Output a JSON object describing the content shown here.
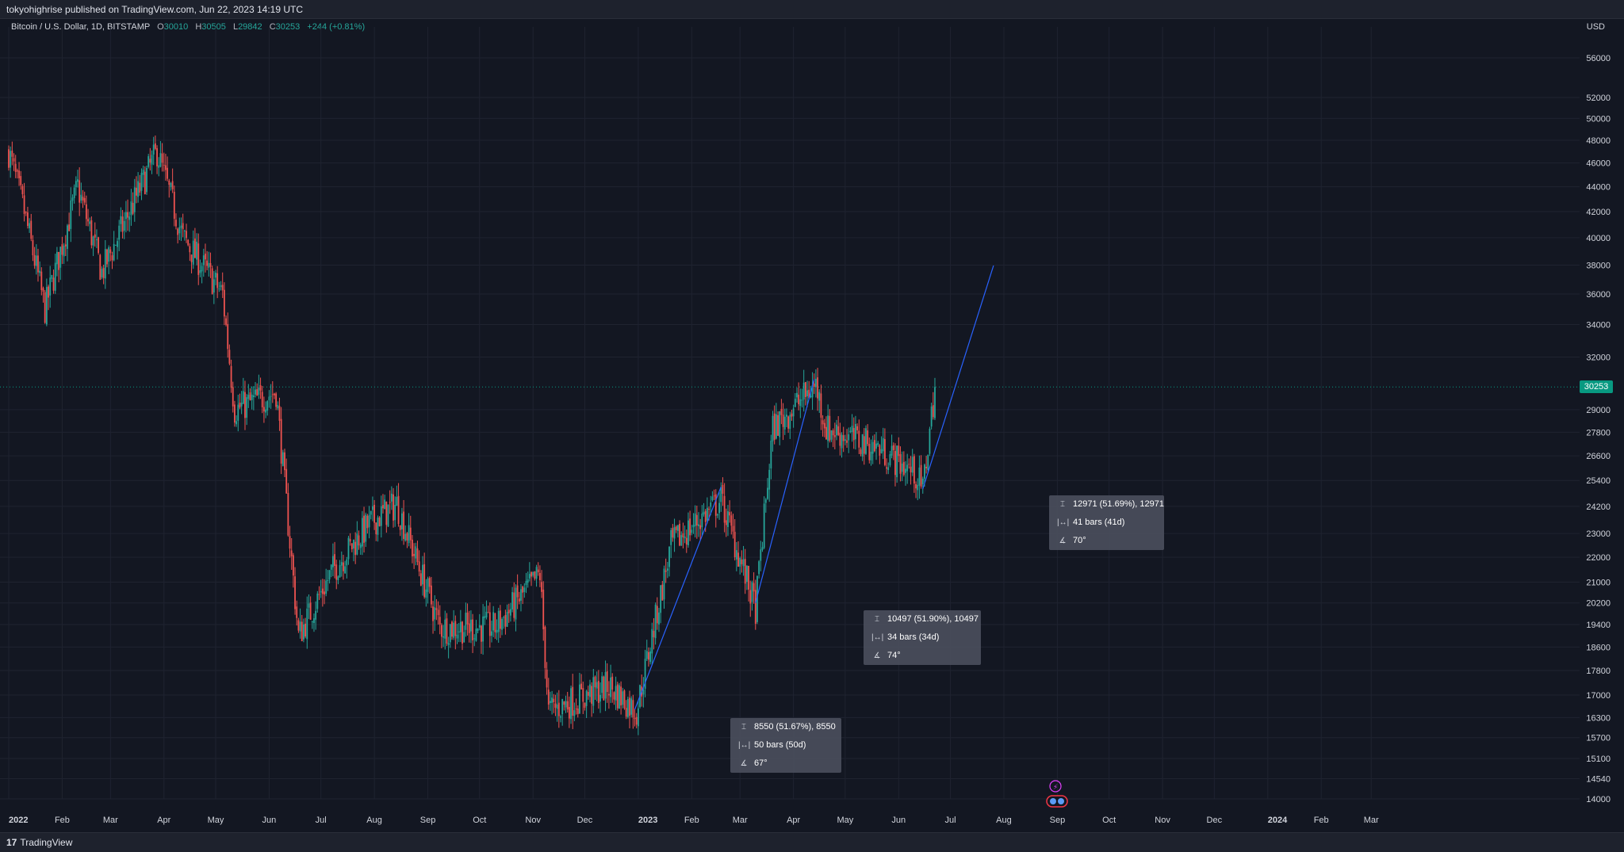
{
  "header": {
    "published": "tokyohighrise published on TradingView.com, Jun 22, 2023 14:19 UTC"
  },
  "legend": {
    "symbol": "Bitcoin / U.S. Dollar, 1D, BITSTAMP",
    "o_label": "O",
    "o": "30010",
    "h_label": "H",
    "h": "30505",
    "l_label": "L",
    "l": "29842",
    "c_label": "C",
    "c": "30253",
    "change": "+244 (+0.81%)"
  },
  "currency": "USD",
  "footer": {
    "brand": "TradingView",
    "logo_glyph": "17"
  },
  "last_price_label": "30253",
  "colors": {
    "up": "#26a69a",
    "down": "#ef5350",
    "line": "#2962ff",
    "bg": "#131722"
  },
  "measurements": [
    {
      "price": "8550 (51.67%), 8550",
      "bars": "50 bars (50d)",
      "angle": "67°"
    },
    {
      "price": "10497 (51.90%), 10497",
      "bars": "34 bars (34d)",
      "angle": "74°"
    },
    {
      "price": "12971 (51.69%), 12971",
      "bars": "41 bars (41d)",
      "angle": "70°"
    }
  ],
  "chart_data": {
    "type": "candlestick",
    "scale": "log",
    "last_price": 30253,
    "y_ticks": [
      14000,
      14540,
      15100,
      15700,
      16300,
      17000,
      17800,
      18600,
      19400,
      20200,
      21000,
      22000,
      23000,
      24200,
      25400,
      26600,
      27800,
      29000,
      32000,
      34000,
      36000,
      38000,
      40000,
      42000,
      44000,
      46000,
      48000,
      50000,
      52000,
      56000
    ],
    "x_ticks": [
      {
        "label": "2022",
        "date": "2022-01-01",
        "bold": true
      },
      {
        "label": "Feb",
        "date": "2022-02-01"
      },
      {
        "label": "Mar",
        "date": "2022-03-01"
      },
      {
        "label": "Apr",
        "date": "2022-04-01"
      },
      {
        "label": "May",
        "date": "2022-05-01"
      },
      {
        "label": "Jun",
        "date": "2022-06-01"
      },
      {
        "label": "Jul",
        "date": "2022-07-01"
      },
      {
        "label": "Aug",
        "date": "2022-08-01"
      },
      {
        "label": "Sep",
        "date": "2022-09-01"
      },
      {
        "label": "Oct",
        "date": "2022-10-01"
      },
      {
        "label": "Nov",
        "date": "2022-11-01"
      },
      {
        "label": "Dec",
        "date": "2022-12-01"
      },
      {
        "label": "2023",
        "date": "2023-01-01",
        "bold": true
      },
      {
        "label": "Feb",
        "date": "2023-02-01"
      },
      {
        "label": "Mar",
        "date": "2023-03-01"
      },
      {
        "label": "Apr",
        "date": "2023-04-01"
      },
      {
        "label": "May",
        "date": "2023-05-01"
      },
      {
        "label": "Jun",
        "date": "2023-06-01"
      },
      {
        "label": "Jul",
        "date": "2023-07-01"
      },
      {
        "label": "Aug",
        "date": "2023-08-01"
      },
      {
        "label": "Sep",
        "date": "2023-09-01"
      },
      {
        "label": "Oct",
        "date": "2023-10-01"
      },
      {
        "label": "Nov",
        "date": "2023-11-01"
      },
      {
        "label": "Dec",
        "date": "2023-12-01"
      },
      {
        "label": "2024",
        "date": "2024-01-01",
        "bold": true
      },
      {
        "label": "Feb",
        "date": "2024-02-01"
      },
      {
        "label": "Mar",
        "date": "2024-03-01"
      }
    ],
    "close_path": [
      {
        "date": "2022-01-01",
        "close": 47000
      },
      {
        "date": "2022-01-10",
        "close": 42000
      },
      {
        "date": "2022-01-22",
        "close": 35000
      },
      {
        "date": "2022-02-10",
        "close": 44000
      },
      {
        "date": "2022-02-24",
        "close": 37500
      },
      {
        "date": "2022-03-28",
        "close": 47000
      },
      {
        "date": "2022-04-12",
        "close": 40000
      },
      {
        "date": "2022-05-05",
        "close": 36000
      },
      {
        "date": "2022-05-12",
        "close": 29000
      },
      {
        "date": "2022-06-05",
        "close": 30000
      },
      {
        "date": "2022-06-18",
        "close": 19000
      },
      {
        "date": "2022-07-08",
        "close": 21500
      },
      {
        "date": "2022-07-30",
        "close": 23500
      },
      {
        "date": "2022-08-14",
        "close": 24300
      },
      {
        "date": "2022-09-08",
        "close": 19300
      },
      {
        "date": "2022-10-10",
        "close": 19300
      },
      {
        "date": "2022-11-05",
        "close": 21300
      },
      {
        "date": "2022-11-10",
        "close": 16500
      },
      {
        "date": "2022-12-15",
        "close": 17300
      },
      {
        "date": "2022-12-31",
        "close": 16500
      },
      {
        "date": "2023-01-20",
        "close": 22500
      },
      {
        "date": "2023-02-18",
        "close": 24500
      },
      {
        "date": "2023-03-10",
        "close": 20000
      },
      {
        "date": "2023-03-20",
        "close": 28000
      },
      {
        "date": "2023-04-14",
        "close": 30400
      },
      {
        "date": "2023-04-20",
        "close": 28000
      },
      {
        "date": "2023-05-20",
        "close": 27000
      },
      {
        "date": "2023-06-10",
        "close": 25800
      },
      {
        "date": "2023-06-15",
        "close": 25000
      },
      {
        "date": "2023-06-22",
        "close": 30253
      }
    ],
    "trend_lines": [
      {
        "from": {
          "date": "2022-12-30",
          "price": 16550
        },
        "to": {
          "date": "2023-02-18",
          "price": 25100
        }
      },
      {
        "from": {
          "date": "2023-03-10",
          "price": 20200
        },
        "to": {
          "date": "2023-04-13",
          "price": 30700
        }
      },
      {
        "from": {
          "date": "2023-06-15",
          "price": 25000
        },
        "to": {
          "date": "2023-07-26",
          "price": 37971
        }
      }
    ]
  }
}
